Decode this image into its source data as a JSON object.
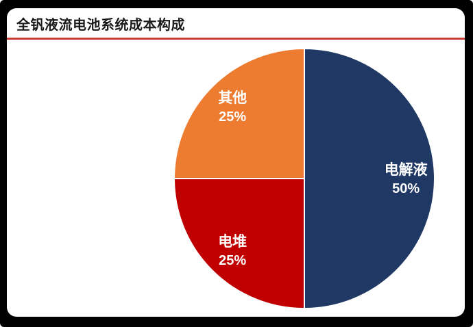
{
  "header": {
    "title": "全钒液流电池系统成本构成"
  },
  "theme": {
    "frame_color": "#000000",
    "panel_color": "#ffffff",
    "title_color": "#1a1a1a",
    "title_underline_color": "#cb3b38",
    "label_text_color": "#ffffff"
  },
  "chart_data": {
    "type": "pie",
    "title": "全钒液流电池系统成本构成",
    "categories": [
      "电解液",
      "电堆",
      "其他"
    ],
    "values": [
      50,
      25,
      25
    ],
    "percent_labels": [
      "50%",
      "25%",
      "25%"
    ],
    "colors": [
      "#1F3864",
      "#C00000",
      "#ED7C31"
    ],
    "slice_ids": [
      "electrolyte",
      "stack",
      "other"
    ],
    "start_angle_deg": 0,
    "direction": "clockwise",
    "legend": "none",
    "data_labels": "inside",
    "separator_color": "#ffffff"
  }
}
